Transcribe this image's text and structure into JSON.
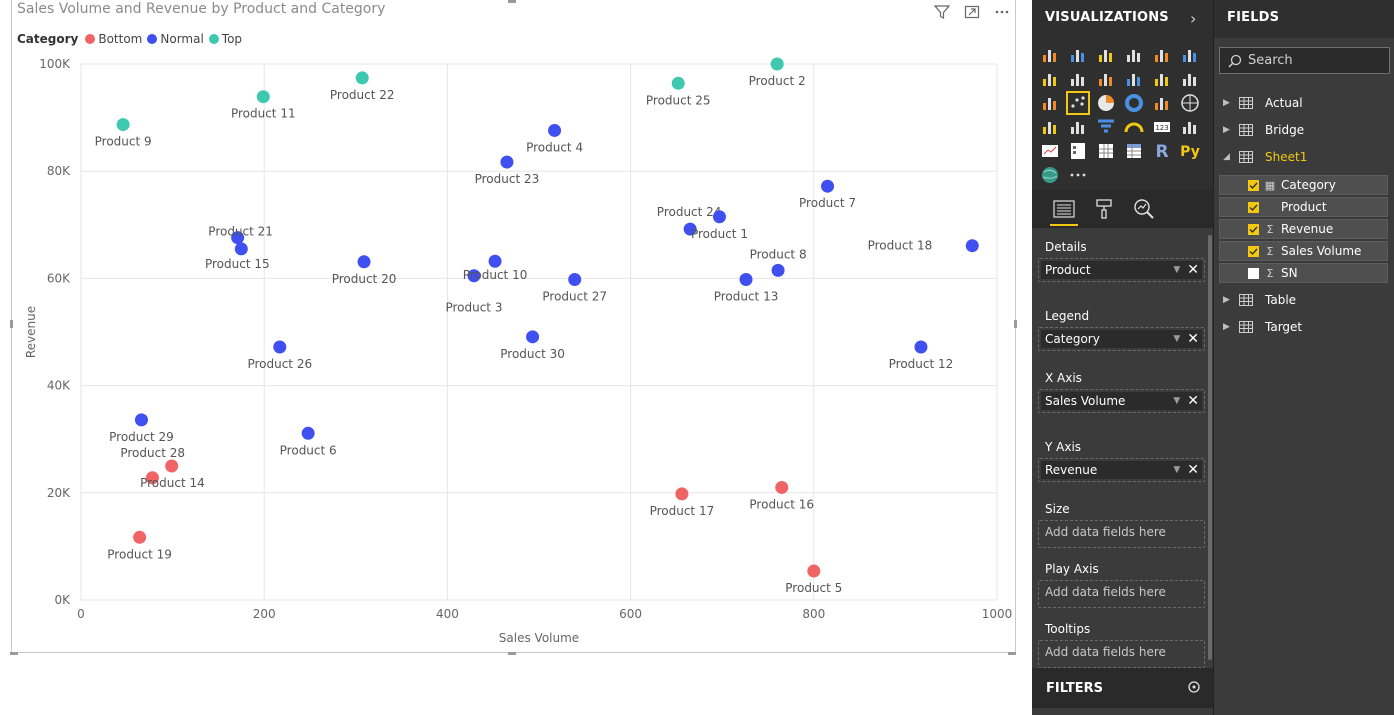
{
  "chart": {
    "title": "Sales Volume and Revenue by Product and Category",
    "legend_title": "Category",
    "legend": [
      {
        "label": "Bottom",
        "color": "#f06466"
      },
      {
        "label": "Normal",
        "color": "#3f4ff0"
      },
      {
        "label": "Top",
        "color": "#3ec8b0"
      }
    ],
    "header_icons": [
      "filter-icon",
      "focus-mode-icon",
      "more-options-icon"
    ]
  },
  "chart_data": {
    "type": "scatter",
    "title": "Sales Volume and Revenue by Product and Category",
    "xlabel": "Sales Volume",
    "ylabel": "Revenue",
    "xlim": [
      0,
      1000
    ],
    "ylim": [
      0,
      100000
    ],
    "x_ticks": [
      0,
      200,
      400,
      600,
      800,
      1000
    ],
    "x_tick_labels": [
      "0",
      "200",
      "400",
      "600",
      "800",
      "1000"
    ],
    "y_ticks": [
      0,
      20000,
      40000,
      60000,
      80000,
      100000
    ],
    "y_tick_labels": [
      "0K",
      "20K",
      "40K",
      "60K",
      "80K",
      "100K"
    ],
    "grid": true,
    "legend_position": "top-left",
    "series": [
      {
        "name": "Bottom",
        "color": "#f06466",
        "points": [
          {
            "label": "Product 19",
            "x": 64,
            "y": 11700
          },
          {
            "label": "Product 14",
            "x": 78,
            "y": 22800
          },
          {
            "label": "Product 28",
            "x": 99,
            "y": 25000
          },
          {
            "label": "Product 17",
            "x": 656,
            "y": 19800
          },
          {
            "label": "Product 16",
            "x": 765,
            "y": 21000
          },
          {
            "label": "Product 5",
            "x": 800,
            "y": 5400
          }
        ]
      },
      {
        "name": "Normal",
        "color": "#3f4ff0",
        "points": [
          {
            "label": "Product 29",
            "x": 66,
            "y": 33600
          },
          {
            "label": "Product 21",
            "x": 171,
            "y": 67600
          },
          {
            "label": "Product 15",
            "x": 175,
            "y": 65500
          },
          {
            "label": "Product 26",
            "x": 217,
            "y": 47200
          },
          {
            "label": "Product 6",
            "x": 248,
            "y": 31100
          },
          {
            "label": "Product 20",
            "x": 309,
            "y": 63100
          },
          {
            "label": "Product 3",
            "x": 429,
            "y": 60500
          },
          {
            "label": "Product 10",
            "x": 452,
            "y": 63200
          },
          {
            "label": "Product 23",
            "x": 465,
            "y": 81700
          },
          {
            "label": "Product 30",
            "x": 493,
            "y": 49100
          },
          {
            "label": "Product 4",
            "x": 517,
            "y": 87600
          },
          {
            "label": "Product 27",
            "x": 539,
            "y": 59800
          },
          {
            "label": "Product 24",
            "x": 665,
            "y": 69200
          },
          {
            "label": "Product 1",
            "x": 697,
            "y": 71500
          },
          {
            "label": "Product 13",
            "x": 726,
            "y": 59800
          },
          {
            "label": "Product 8",
            "x": 761,
            "y": 61500
          },
          {
            "label": "Product 7",
            "x": 815,
            "y": 77200
          },
          {
            "label": "Product 12",
            "x": 917,
            "y": 47200
          },
          {
            "label": "Product 18",
            "x": 973,
            "y": 66100
          }
        ]
      },
      {
        "name": "Top",
        "color": "#3ec8b0",
        "points": [
          {
            "label": "Product 9",
            "x": 46,
            "y": 88700
          },
          {
            "label": "Product 11",
            "x": 199,
            "y": 93900
          },
          {
            "label": "Product 22",
            "x": 307,
            "y": 97400
          },
          {
            "label": "Product 25",
            "x": 652,
            "y": 96400
          },
          {
            "label": "Product 2",
            "x": 760,
            "y": 100000
          }
        ]
      }
    ]
  },
  "visualizations": {
    "header": "VISUALIZATIONS",
    "selected_icon": "scatter-chart-icon",
    "wells": [
      {
        "label": "Details",
        "value": "Product"
      },
      {
        "label": "Legend",
        "value": "Category"
      },
      {
        "label": "X Axis",
        "value": "Sales Volume"
      },
      {
        "label": "Y Axis",
        "value": "Revenue"
      },
      {
        "label": "Size",
        "placeholder": "Add data fields here"
      },
      {
        "label": "Play Axis",
        "placeholder": "Add data fields here"
      },
      {
        "label": "Tooltips",
        "placeholder": "Add data fields here"
      }
    ],
    "filters_label": "FILTERS",
    "accent_color": "#f2c811"
  },
  "fields": {
    "header": "FIELDS",
    "search_placeholder": "Search",
    "tables": [
      {
        "name": "Actual",
        "expanded": false
      },
      {
        "name": "Bridge",
        "expanded": false
      },
      {
        "name": "Sheet1",
        "expanded": true
      },
      {
        "name": "Table",
        "expanded": false
      },
      {
        "name": "Target",
        "expanded": false
      }
    ],
    "sheet1_fields": [
      {
        "name": "Category",
        "checked": true,
        "icon": "hierarchy-field-icon"
      },
      {
        "name": "Product",
        "checked": true,
        "icon": ""
      },
      {
        "name": "Revenue",
        "checked": true,
        "icon": "sigma-icon"
      },
      {
        "name": "Sales Volume",
        "checked": true,
        "icon": "sigma-icon"
      },
      {
        "name": "SN",
        "checked": false,
        "icon": "sigma-icon"
      }
    ]
  }
}
